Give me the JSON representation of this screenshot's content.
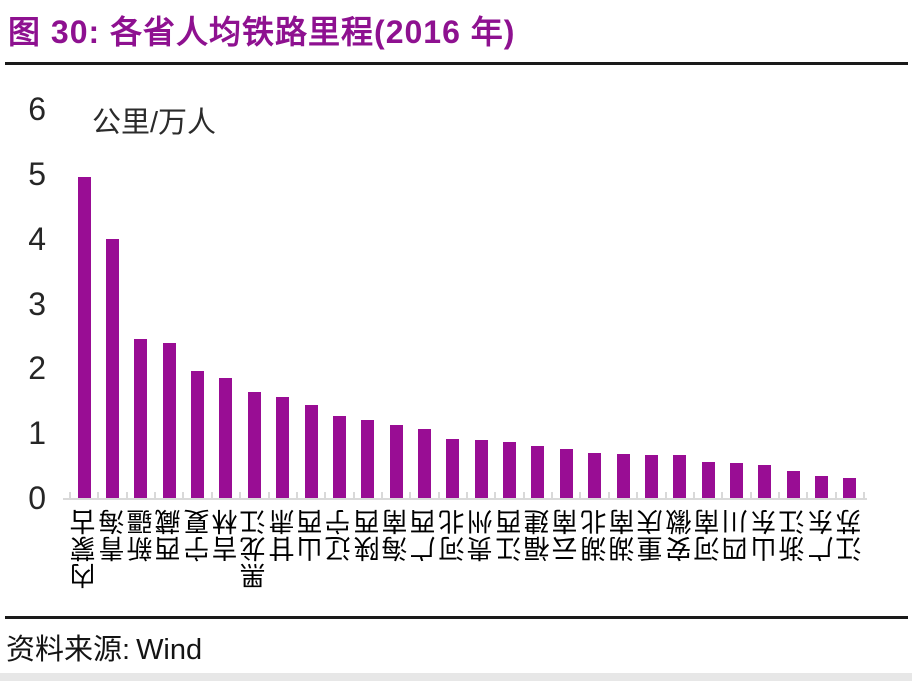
{
  "page": {
    "title": "图 30: 各省人均铁路里程(2016 年)",
    "source_label": "资料来源:",
    "source_value": "Wind"
  },
  "colors": {
    "title": "#8e1190",
    "bar": "#990d94",
    "axis": "#d9d9d9",
    "rule": "#1a1a1a"
  },
  "chart_data": {
    "type": "bar",
    "title": "图 30: 各省人均铁路里程(2016 年)",
    "unit_label": "公里/万人",
    "xlabel": "",
    "ylabel": "公里/万人",
    "ylim": [
      0,
      6
    ],
    "yticks": [
      0,
      1,
      2,
      3,
      4,
      5,
      6
    ],
    "grid": false,
    "legend": "none",
    "bar_color": "#990d94",
    "categories": [
      "内蒙古",
      "青海",
      "新疆",
      "西藏",
      "宁夏",
      "吉林",
      "黑龙江",
      "甘肃",
      "山西",
      "辽宁",
      "陕西",
      "海南",
      "广西",
      "河北",
      "贵州",
      "江西",
      "福建",
      "云南",
      "湖北",
      "湖南",
      "重庆",
      "安徽",
      "河南",
      "四川",
      "山东",
      "浙江",
      "广东",
      "江苏"
    ],
    "values": [
      4.95,
      4.0,
      2.46,
      2.39,
      1.96,
      1.85,
      1.64,
      1.56,
      1.43,
      1.27,
      1.2,
      1.12,
      1.06,
      0.91,
      0.9,
      0.86,
      0.81,
      0.75,
      0.69,
      0.68,
      0.67,
      0.66,
      0.56,
      0.54,
      0.51,
      0.42,
      0.34,
      0.31
    ],
    "source": "资料来源: Wind"
  }
}
